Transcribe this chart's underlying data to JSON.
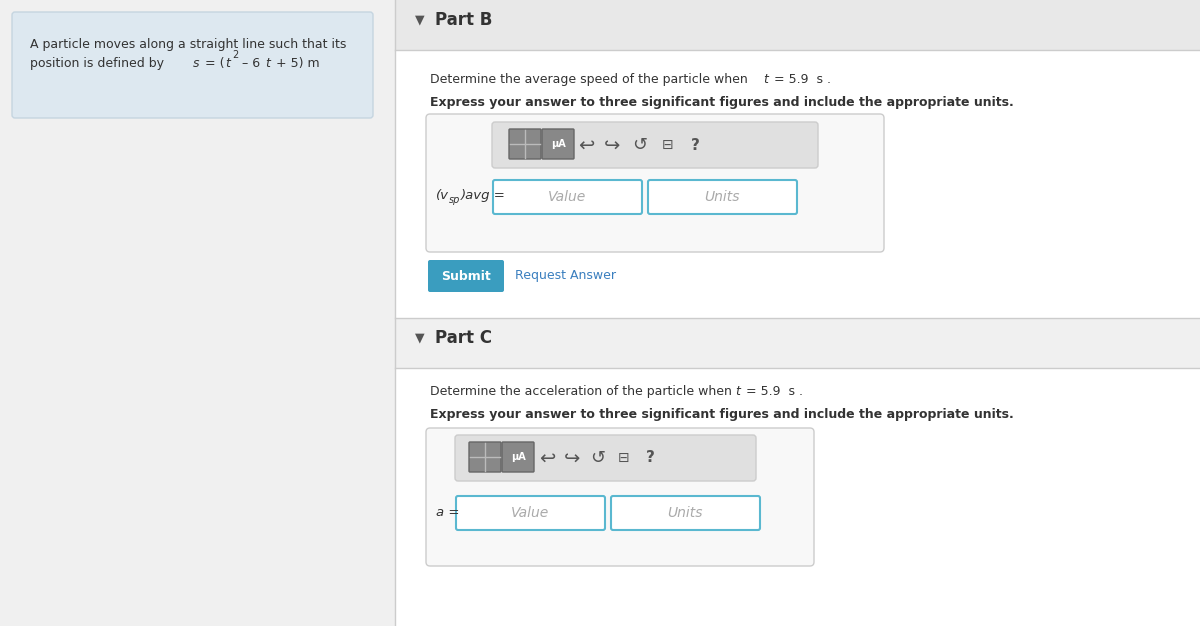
{
  "fig_w": 12.0,
  "fig_h": 6.26,
  "bg_color": "#f0f0f0",
  "left_panel_bg": "#dde8f0",
  "left_panel_border": "#c5d5e0",
  "right_panel_bg": "#ffffff",
  "part_header_bg": "#e8e8e8",
  "part_c_area_bg": "#f0f0f0",
  "left_text_line1": "A particle moves along a straight line such that its",
  "left_text_part2a": "position is defined by s = (t",
  "left_text_part2b": "– 6t + 5) m",
  "part_b_header": "Part B",
  "part_b_desc": "Determine the average speed of the particle when ",
  "part_b_t_val": "5.9",
  "part_b_bold": "Express your answer to three significant figures and include the appropriate units.",
  "part_b_label": "(v",
  "part_b_label_sub": "sp",
  "part_b_label_end": ")avg =",
  "part_b_value_placeholder": "Value",
  "part_b_units_placeholder": "Units",
  "submit_text": "Submit",
  "request_answer_text": "Request Answer",
  "part_c_header": "Part C",
  "part_c_desc": "Determine the acceleration of the particle when ",
  "part_c_t_val": "5.9",
  "part_c_bold": "Express your answer to three significant figures and include the appropriate units.",
  "part_c_label": "a =",
  "part_c_value_placeholder": "Value",
  "part_c_units_placeholder": "Units",
  "teal_btn_color": "#3a9dbf",
  "link_color": "#3a7fbf",
  "icon_bg": "#888888",
  "icon_bg2": "#999999",
  "input_border": "#5ab8d0",
  "input_bg": "#ffffff",
  "toolbar_bg": "#e0e0e0",
  "toolbar_border": "#cccccc",
  "outer_box_border": "#cccccc",
  "text_dark": "#333333",
  "text_gray": "#aaaaaa"
}
